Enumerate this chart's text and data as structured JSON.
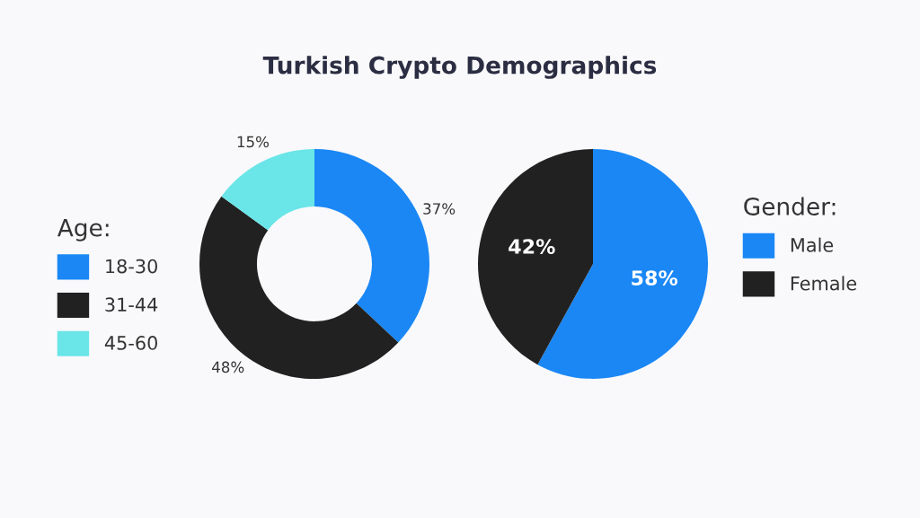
{
  "chart_data": [
    {
      "type": "donut",
      "title": "Turkish Crypto Demographics",
      "legend_title": "Age:",
      "legend": "left",
      "categories": [
        "18-30",
        "31-44",
        "45-60"
      ],
      "values": [
        37,
        48,
        15
      ],
      "value_labels": [
        "37%",
        "48%",
        "15%"
      ],
      "colors": [
        "#1a87f5",
        "#212121",
        "#6ae5e8"
      ]
    },
    {
      "type": "pie",
      "legend_title": "Gender:",
      "legend": "right",
      "categories": [
        "Male",
        "Female"
      ],
      "values": [
        58,
        42
      ],
      "value_labels": [
        "58%",
        "42%"
      ],
      "colors": [
        "#1a87f5",
        "#212121"
      ]
    }
  ]
}
